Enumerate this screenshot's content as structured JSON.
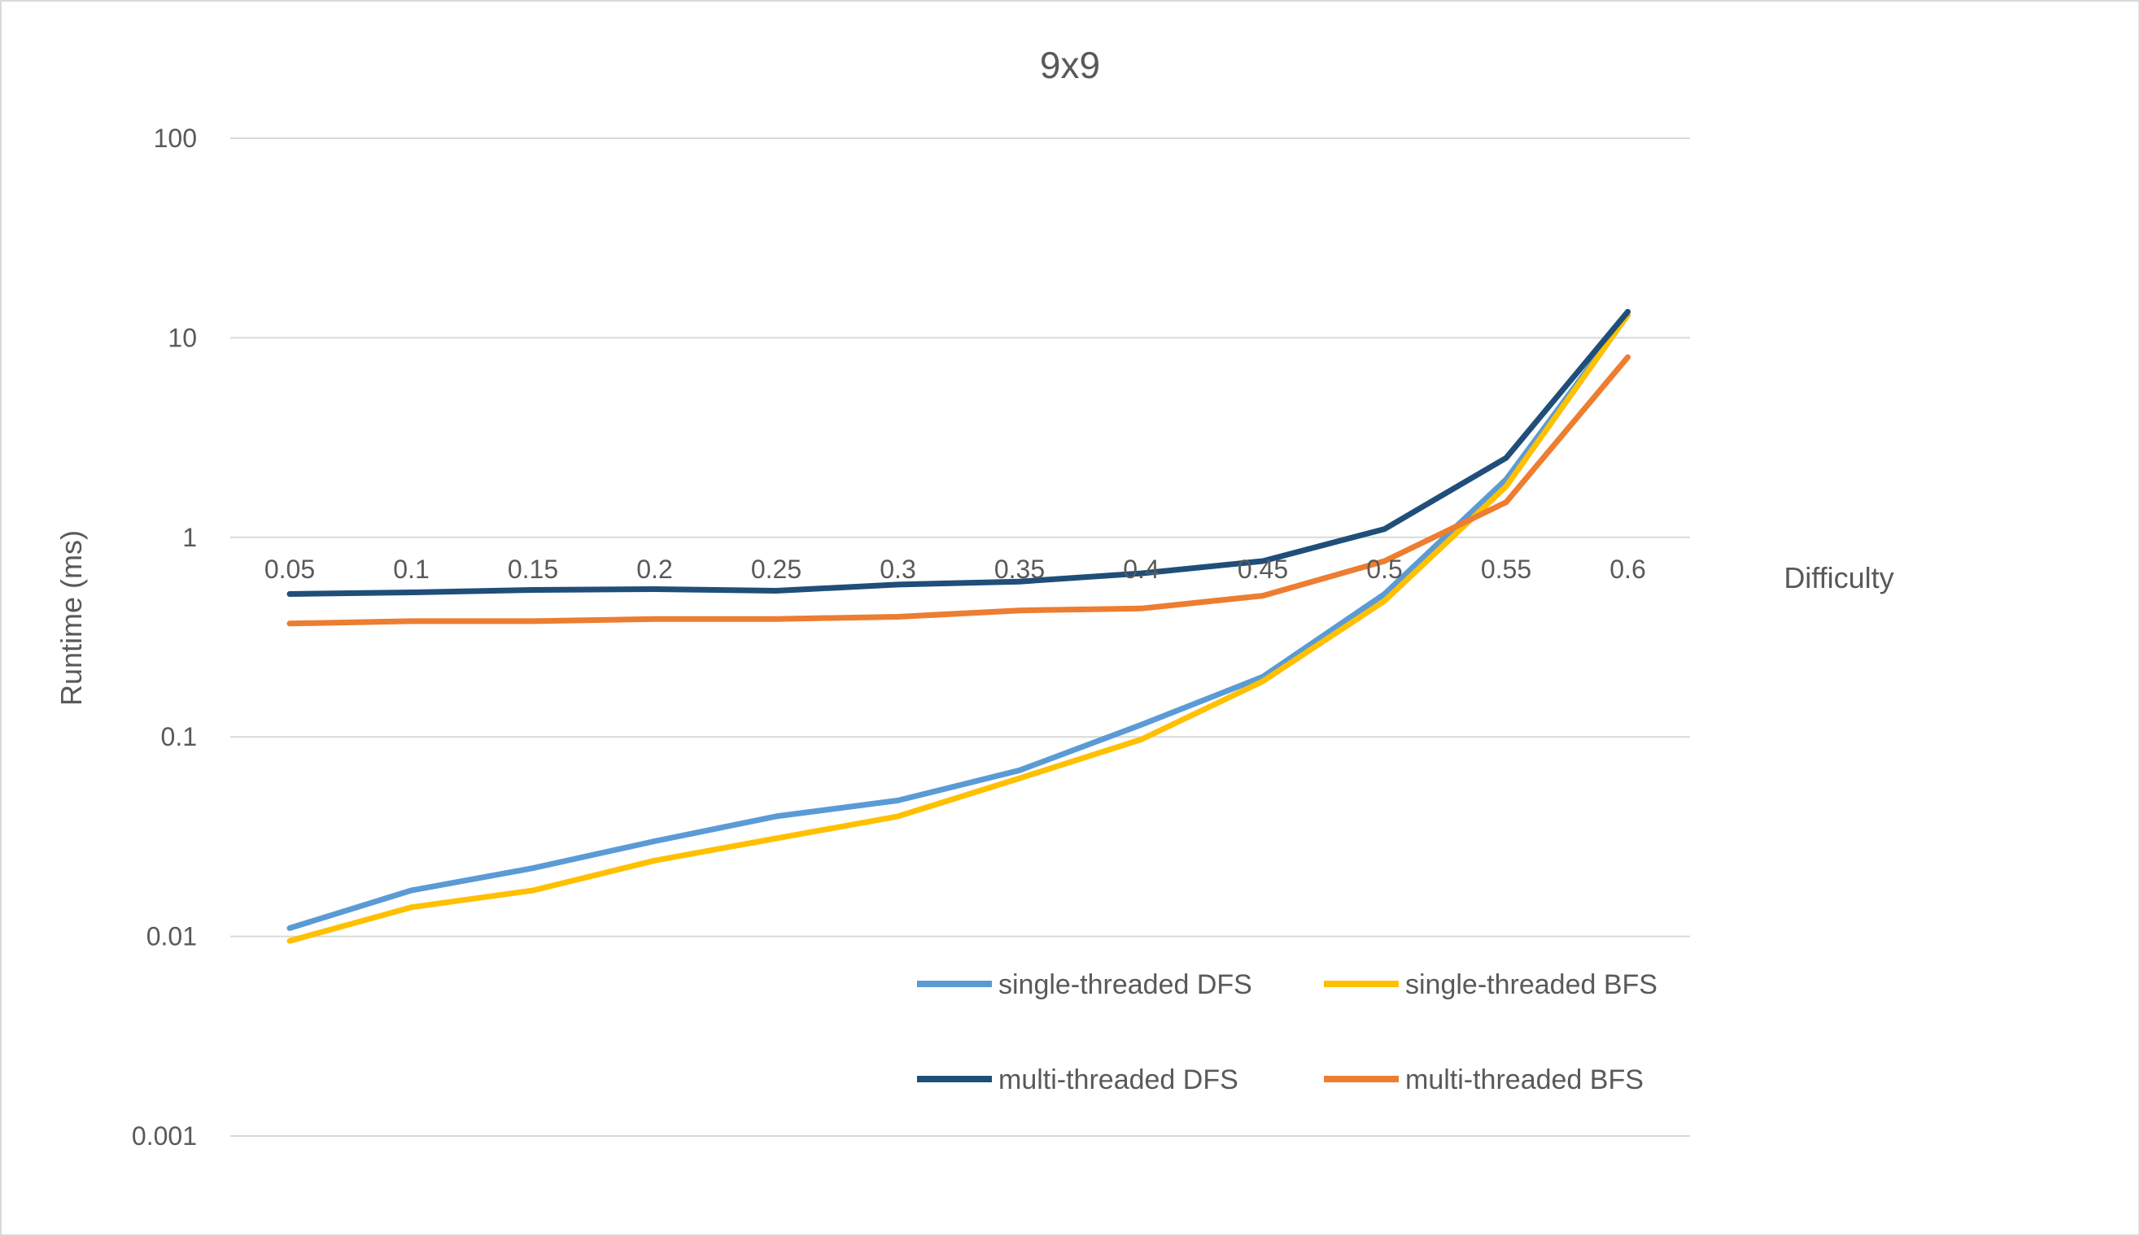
{
  "chart_data": {
    "type": "line",
    "title": "9x9",
    "xlabel": "Difficulty",
    "ylabel": "Runtime (ms)",
    "y_scale": "log",
    "ylim": [
      0.001,
      100
    ],
    "y_ticks": [
      "100",
      "10",
      "1",
      "0.1",
      "0.01",
      "0.001"
    ],
    "y_tick_values": [
      100,
      10,
      1,
      0.1,
      0.01,
      0.001
    ],
    "categories": [
      "0.05",
      "0.1",
      "0.15",
      "0.2",
      "0.25",
      "0.3",
      "0.35",
      "0.4",
      "0.45",
      "0.5",
      "0.55",
      "0.6"
    ],
    "grid": "horizontal",
    "legend_position": "bottom-right",
    "series": [
      {
        "name": "single-threaded DFS",
        "color": "#5b9bd5",
        "values": [
          0.011,
          0.017,
          0.022,
          0.03,
          0.04,
          0.048,
          0.068,
          0.115,
          0.2,
          0.52,
          1.95,
          13
        ]
      },
      {
        "name": "single-threaded BFS",
        "color": "#ffc000",
        "values": [
          0.0095,
          0.014,
          0.017,
          0.024,
          0.031,
          0.04,
          0.062,
          0.097,
          0.19,
          0.48,
          1.8,
          13
        ]
      },
      {
        "name": "multi-threaded DFS",
        "color": "#1f4e79",
        "values": [
          0.52,
          0.53,
          0.545,
          0.55,
          0.54,
          0.58,
          0.6,
          0.66,
          0.76,
          1.1,
          2.5,
          13.5
        ]
      },
      {
        "name": "multi-threaded BFS",
        "color": "#ed7d31",
        "values": [
          0.37,
          0.38,
          0.38,
          0.39,
          0.39,
          0.4,
          0.43,
          0.44,
          0.51,
          0.76,
          1.5,
          8
        ]
      }
    ]
  }
}
